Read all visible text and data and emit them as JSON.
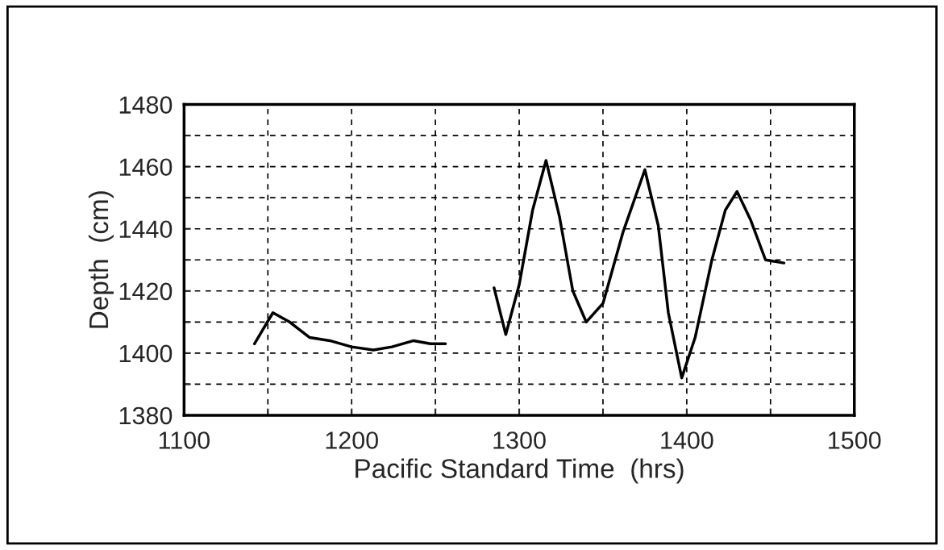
{
  "chart_data": {
    "type": "line",
    "xlabel": "Pacific Standard Time  (hrs)",
    "ylabel": "Depth  (cm)",
    "xlim": [
      1100,
      1500
    ],
    "ylim": [
      1380,
      1480
    ],
    "xticks": [
      1100,
      {
        "value": 1150,
        "label": null
      },
      1200,
      {
        "value": 1250,
        "label": null
      },
      1300,
      {
        "value": 1350,
        "label": null
      },
      1400,
      {
        "value": 1450,
        "label": null
      },
      1500
    ],
    "yticks": [
      1380,
      {
        "value": 1390,
        "label": null
      },
      1400,
      {
        "value": 1410,
        "label": null
      },
      1420,
      {
        "value": 1430,
        "label": null
      },
      1440,
      {
        "value": 1450,
        "label": null
      },
      1460,
      {
        "value": 1470,
        "label": null
      },
      1480
    ],
    "grid": true,
    "line_style": "solid",
    "marker": "none",
    "series": [
      {
        "color": "#000000",
        "x": [
          1142,
          1153,
          1163,
          1175,
          1187,
          1200,
          1213,
          1224,
          1237,
          1247,
          1256
        ],
        "values": [
          1403,
          1413,
          1410,
          1405,
          1404,
          1402,
          1401,
          1402,
          1404,
          1403,
          1403
        ]
      },
      {
        "color": "#000000",
        "x": [
          1285,
          1292,
          1300,
          1308,
          1316,
          1324,
          1332,
          1340,
          1350,
          1362,
          1375,
          1383,
          1389,
          1397,
          1405,
          1415,
          1423,
          1430,
          1438,
          1447,
          1458
        ],
        "values": [
          1421,
          1406,
          1422,
          1446,
          1462,
          1444,
          1420,
          1410,
          1416,
          1439,
          1459,
          1441,
          1413,
          1392,
          1405,
          1430,
          1446,
          1452,
          1443,
          1430,
          1429
        ]
      }
    ]
  }
}
